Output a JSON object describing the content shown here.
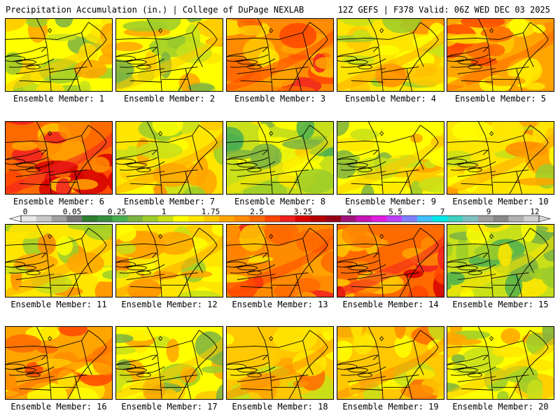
{
  "header": {
    "title": "Precipitation Accumulation (in.) | College of DuPage NEXLAB",
    "run_info": "12Z GEFS | F378 Valid: 06Z WED DEC 03 2025"
  },
  "panels": [
    {
      "label": "Ensemble Member: 1",
      "wetness": 0.35
    },
    {
      "label": "Ensemble Member: 2",
      "wetness": 0.35
    },
    {
      "label": "Ensemble Member: 3",
      "wetness": 0.75
    },
    {
      "label": "Ensemble Member: 4",
      "wetness": 0.4
    },
    {
      "label": "Ensemble Member: 5",
      "wetness": 0.65
    },
    {
      "label": "Ensemble Member: 6",
      "wetness": 0.85
    },
    {
      "label": "Ensemble Member: 7",
      "wetness": 0.45
    },
    {
      "label": "Ensemble Member: 8",
      "wetness": 0.2
    },
    {
      "label": "Ensemble Member: 9",
      "wetness": 0.3
    },
    {
      "label": "Ensemble Member: 10",
      "wetness": 0.4
    },
    {
      "label": "Ensemble Member: 11",
      "wetness": 0.4
    },
    {
      "label": "Ensemble Member: 12",
      "wetness": 0.45
    },
    {
      "label": "Ensemble Member: 13",
      "wetness": 0.75
    },
    {
      "label": "Ensemble Member: 14",
      "wetness": 0.9
    },
    {
      "label": "Ensemble Member: 15",
      "wetness": 0.2
    },
    {
      "label": "Ensemble Member: 16",
      "wetness": 0.7
    },
    {
      "label": "Ensemble Member: 17",
      "wetness": 0.3
    },
    {
      "label": "Ensemble Member: 18",
      "wetness": 0.6
    },
    {
      "label": "Ensemble Member: 19",
      "wetness": 0.6
    },
    {
      "label": "Ensemble Member: 20",
      "wetness": 0.35
    }
  ],
  "colorbar": {
    "tick_labels": [
      "0",
      "0.05",
      "0.25",
      "1",
      "1.75",
      "2.5",
      "3.25",
      "4",
      "5.5",
      "7",
      "9",
      "12"
    ],
    "colors": [
      "#e8e8e8",
      "#c8c8c8",
      "#a0a0a0",
      "#787878",
      "#2e7d32",
      "#388e3c",
      "#4caf50",
      "#7cb342",
      "#9ccc2a",
      "#c8e01a",
      "#ffff00",
      "#ffe600",
      "#ffc800",
      "#ffa500",
      "#ff8c00",
      "#ff6a00",
      "#ff4500",
      "#f02020",
      "#d60000",
      "#b40000",
      "#960018",
      "#a0147a",
      "#c814b4",
      "#e01ee0",
      "#c040ff",
      "#8080ff",
      "#40c0ff",
      "#00e8e8",
      "#40d0c0",
      "#80c0c0",
      "#a0a0a0",
      "#888888",
      "#b0b0b0",
      "#d0d0d0"
    ]
  }
}
